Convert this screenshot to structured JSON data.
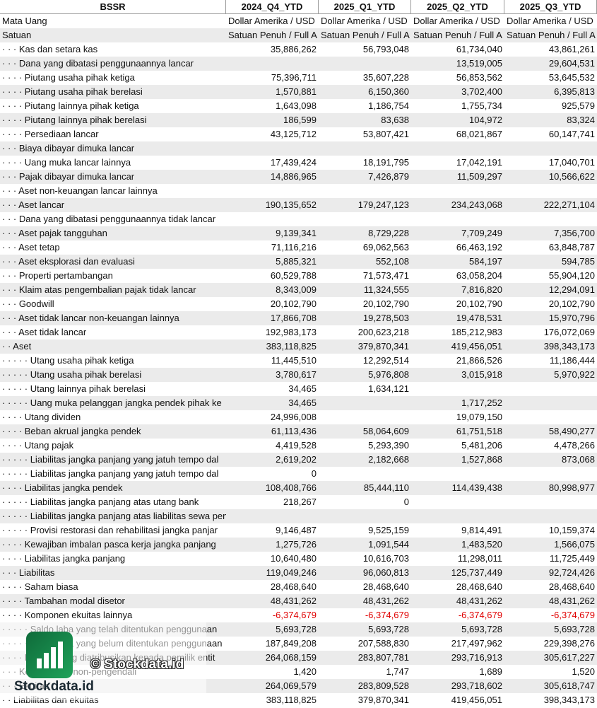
{
  "table": {
    "header": [
      "BSSR",
      "2024_Q4_YTD",
      "2025_Q1_YTD",
      "2025_Q2_YTD",
      "2025_Q3_YTD"
    ],
    "meta": [
      [
        "Mata Uang",
        "Dollar Amerika / USD",
        "Dollar Amerika / USD",
        "Dollar Amerika / USD",
        "Dollar Amerika / USD"
      ],
      [
        "Satuan",
        "Satuan Penuh / Full A",
        "Satuan Penuh / Full A",
        "Satuan Penuh / Full A",
        "Satuan Penuh / Full A"
      ]
    ],
    "rows": [
      [
        "· · · Kas dan setara kas",
        "35,886,262",
        "56,793,048",
        "61,734,040",
        "43,861,261"
      ],
      [
        "· · · Dana yang dibatasi penggunaannya lancar",
        null,
        null,
        "13,519,005",
        "29,604,531"
      ],
      [
        "· · · · Piutang usaha pihak ketiga",
        "75,396,711",
        "35,607,228",
        "56,853,562",
        "53,645,532"
      ],
      [
        "· · · · Piutang usaha pihak berelasi",
        "1,570,881",
        "6,150,360",
        "3,702,400",
        "6,395,813"
      ],
      [
        "· · · · Piutang lainnya pihak ketiga",
        "1,643,098",
        "1,186,754",
        "1,755,734",
        "925,579"
      ],
      [
        "· · · · Piutang lainnya pihak berelasi",
        "186,599",
        "83,638",
        "104,972",
        "83,324"
      ],
      [
        "· · · · Persediaan lancar",
        "43,125,712",
        "53,807,421",
        "68,021,867",
        "60,147,741"
      ],
      [
        "· · · Biaya dibayar dimuka lancar",
        null,
        null,
        null,
        null
      ],
      [
        "· · · · Uang muka lancar lainnya",
        "17,439,424",
        "18,191,795",
        "17,042,191",
        "17,040,701"
      ],
      [
        "· · · Pajak dibayar dimuka lancar",
        "14,886,965",
        "7,426,879",
        "11,509,297",
        "10,566,622"
      ],
      [
        "· · · Aset non-keuangan lancar lainnya",
        null,
        null,
        null,
        null
      ],
      [
        "· · · Aset lancar",
        "190,135,652",
        "179,247,123",
        "234,243,068",
        "222,271,104"
      ],
      [
        "· · · Dana yang dibatasi penggunaannya tidak lancar",
        null,
        null,
        null,
        null
      ],
      [
        "· · · Aset pajak tangguhan",
        "9,139,341",
        "8,729,228",
        "7,709,249",
        "7,356,700"
      ],
      [
        "· · · Aset tetap",
        "71,116,216",
        "69,062,563",
        "66,463,192",
        "63,848,787"
      ],
      [
        "· · · Aset eksplorasi dan evaluasi",
        "5,885,321",
        "552,108",
        "584,197",
        "594,785"
      ],
      [
        "· · · Properti pertambangan",
        "60,529,788",
        "71,573,471",
        "63,058,204",
        "55,904,120"
      ],
      [
        "· · · Klaim atas pengembalian pajak tidak lancar",
        "8,343,009",
        "11,324,555",
        "7,816,820",
        "12,294,091"
      ],
      [
        "· · · Goodwill",
        "20,102,790",
        "20,102,790",
        "20,102,790",
        "20,102,790"
      ],
      [
        "· · · Aset tidak lancar non-keuangan lainnya",
        "17,866,708",
        "19,278,503",
        "19,478,531",
        "15,970,796"
      ],
      [
        "· · · Aset tidak lancar",
        "192,983,173",
        "200,623,218",
        "185,212,983",
        "176,072,069"
      ],
      [
        "· · Aset",
        "383,118,825",
        "379,870,341",
        "419,456,051",
        "398,343,173"
      ],
      [
        "· · · · · Utang usaha pihak ketiga",
        "11,445,510",
        "12,292,514",
        "21,866,526",
        "11,186,444"
      ],
      [
        "· · · · · Utang usaha pihak berelasi",
        "3,780,617",
        "5,976,808",
        "3,015,918",
        "5,970,922"
      ],
      [
        "· · · · · Utang lainnya pihak berelasi",
        "34,465",
        "1,634,121",
        null,
        null
      ],
      [
        "· · · · · Uang muka pelanggan jangka pendek pihak ke",
        "34,465",
        null,
        "1,717,252",
        null
      ],
      [
        "· · · · Utang dividen",
        "24,996,008",
        null,
        "19,079,150",
        null
      ],
      [
        "· · · · Beban akrual jangka pendek",
        "61,113,436",
        "58,064,609",
        "61,751,518",
        "58,490,277"
      ],
      [
        "· · · · Utang pajak",
        "4,419,528",
        "5,293,390",
        "5,481,206",
        "4,478,266"
      ],
      [
        "· · · · · Liabilitas jangka panjang yang jatuh tempo dal",
        "2,619,202",
        "2,182,668",
        "1,527,868",
        "873,068"
      ],
      [
        "· · · · · Liabilitas jangka panjang yang jatuh tempo dal",
        "0",
        null,
        null,
        null
      ],
      [
        "· · · · Liabilitas jangka pendek",
        "108,408,766",
        "85,444,110",
        "114,439,438",
        "80,998,977"
      ],
      [
        "· · · · · Liabilitas jangka panjang atas utang bank",
        "218,267",
        "0",
        null,
        null
      ],
      [
        "· · · · · Liabilitas jangka panjang atas liabilitas sewa pembiayaan",
        null,
        null,
        null,
        null
      ],
      [
        "· · · · · Provisi restorasi dan rehabilitasi jangka panjar",
        "9,146,487",
        "9,525,159",
        "9,814,491",
        "10,159,374"
      ],
      [
        "· · · · Kewajiban imbalan pasca kerja jangka panjang",
        "1,275,726",
        "1,091,544",
        "1,483,520",
        "1,566,075"
      ],
      [
        "· · · · Liabilitas jangka panjang",
        "10,640,480",
        "10,616,703",
        "11,298,011",
        "11,725,449"
      ],
      [
        "· · · Liabilitas",
        "119,049,246",
        "96,060,813",
        "125,737,449",
        "92,724,426"
      ],
      [
        "· · · · Saham biasa",
        "28,468,640",
        "28,468,640",
        "28,468,640",
        "28,468,640"
      ],
      [
        "· · · · Tambahan modal disetor",
        "48,431,262",
        "48,431,262",
        "48,431,262",
        "48,431,262"
      ],
      [
        "· · · · Komponen ekuitas lainnya",
        "-6,374,679",
        "-6,374,679",
        "-6,374,679",
        "-6,374,679"
      ],
      [
        "· · · · · Saldo laba yang telah ditentukan penggunaan",
        "5,693,728",
        "5,693,728",
        "5,693,728",
        "5,693,728"
      ],
      [
        "· · · · · Saldo laba yang belum ditentukan penggunaan",
        "187,849,208",
        "207,588,830",
        "217,497,962",
        "229,398,276"
      ],
      [
        "· · · · Ekuitas yang diatribusikan kepada pemilik entit",
        "264,068,159",
        "283,807,781",
        "293,716,913",
        "305,617,227"
      ],
      [
        "· · · Kepentingan non-pengendali",
        "1,420",
        "1,747",
        "1,689",
        "1,520"
      ],
      [
        "· · · Ekuitas",
        "264,069,579",
        "283,809,528",
        "293,718,602",
        "305,618,747"
      ],
      [
        "· · Liabilitas dan ekuitas",
        "383,118,825",
        "379,870,341",
        "419,456,051",
        "398,343,173"
      ]
    ]
  },
  "watermark": {
    "copyright": "© Stockdata.id",
    "brand": "Stockdata.id"
  }
}
